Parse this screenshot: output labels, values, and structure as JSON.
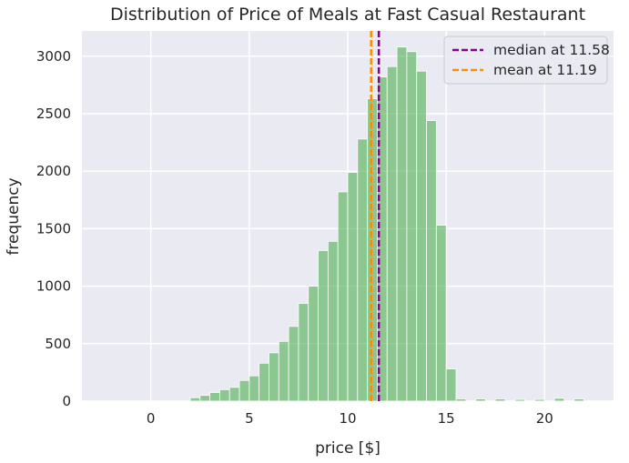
{
  "chart_data": {
    "type": "bar",
    "title": "Distribution of Price of Meals at Fast Casual Restaurant",
    "xlabel": "price [$]",
    "ylabel": "frequency",
    "xlim": [
      -3.5,
      23.5
    ],
    "ylim": [
      0,
      3220
    ],
    "xticks": [
      0,
      5,
      10,
      15,
      20
    ],
    "yticks": [
      0,
      500,
      1000,
      1500,
      2000,
      2500,
      3000
    ],
    "grid": true,
    "legend_position": "top-right",
    "bar_color": "#4caf50",
    "bin_width": 0.5,
    "bins": [
      {
        "x0": -3.0,
        "value": 0
      },
      {
        "x0": -2.5,
        "value": 0
      },
      {
        "x0": -2.0,
        "value": 0
      },
      {
        "x0": -1.5,
        "value": 0
      },
      {
        "x0": -1.0,
        "value": 0
      },
      {
        "x0": -0.5,
        "value": 0
      },
      {
        "x0": 0.0,
        "value": 0
      },
      {
        "x0": 0.5,
        "value": 0
      },
      {
        "x0": 1.0,
        "value": 0
      },
      {
        "x0": 1.5,
        "value": 0
      },
      {
        "x0": 2.0,
        "value": 30
      },
      {
        "x0": 2.5,
        "value": 50
      },
      {
        "x0": 3.0,
        "value": 75
      },
      {
        "x0": 3.5,
        "value": 100
      },
      {
        "x0": 4.0,
        "value": 120
      },
      {
        "x0": 4.5,
        "value": 180
      },
      {
        "x0": 5.0,
        "value": 220
      },
      {
        "x0": 5.5,
        "value": 330
      },
      {
        "x0": 6.0,
        "value": 420
      },
      {
        "x0": 6.5,
        "value": 520
      },
      {
        "x0": 7.0,
        "value": 650
      },
      {
        "x0": 7.5,
        "value": 850
      },
      {
        "x0": 8.0,
        "value": 1000
      },
      {
        "x0": 8.5,
        "value": 1310
      },
      {
        "x0": 9.0,
        "value": 1390
      },
      {
        "x0": 9.5,
        "value": 1820
      },
      {
        "x0": 10.0,
        "value": 1990
      },
      {
        "x0": 10.5,
        "value": 2280
      },
      {
        "x0": 11.0,
        "value": 2630
      },
      {
        "x0": 11.5,
        "value": 2820
      },
      {
        "x0": 12.0,
        "value": 2910
      },
      {
        "x0": 12.5,
        "value": 3080
      },
      {
        "x0": 13.0,
        "value": 3040
      },
      {
        "x0": 13.5,
        "value": 2870
      },
      {
        "x0": 14.0,
        "value": 2440
      },
      {
        "x0": 14.5,
        "value": 1530
      },
      {
        "x0": 15.0,
        "value": 280
      },
      {
        "x0": 15.5,
        "value": 20
      },
      {
        "x0": 16.5,
        "value": 20
      },
      {
        "x0": 17.5,
        "value": 20
      },
      {
        "x0": 18.5,
        "value": 15
      },
      {
        "x0": 19.5,
        "value": 15
      },
      {
        "x0": 20.5,
        "value": 25
      },
      {
        "x0": 21.5,
        "value": 20
      }
    ],
    "reference_lines": [
      {
        "name": "median at 11.58",
        "x": 11.58,
        "color": "#8b008b",
        "style": "dashed"
      },
      {
        "name": "mean at 11.19",
        "x": 11.19,
        "color": "#ff8c00",
        "style": "dashed"
      }
    ]
  }
}
